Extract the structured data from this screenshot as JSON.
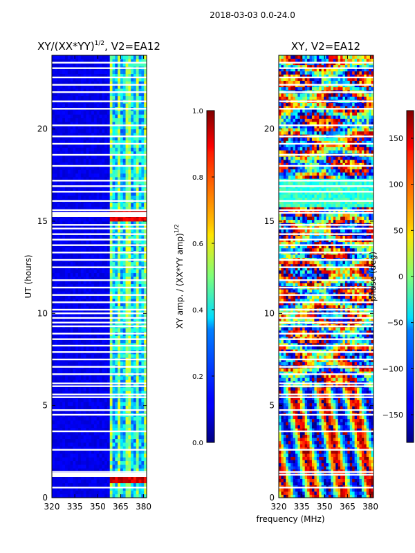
{
  "figure": {
    "suptitle": "2018-03-03 0.0-24.0",
    "shared_xlabel": "frequency (MHz)"
  },
  "chart_data": [
    {
      "type": "heatmap",
      "title": "XY/(XX*YY)^1/2, V2=EA12",
      "title_main": "XY/(XX*YY)",
      "title_exp": "1/2",
      "title_tail": ", V2=EA12",
      "x_range": [
        320,
        382
      ],
      "y_range": [
        0,
        24
      ],
      "x_ticks": [
        320,
        335,
        350,
        365,
        380
      ],
      "y_ticks": [
        0,
        5,
        10,
        15,
        20
      ],
      "ylabel": "UT (hours)",
      "colorbar": {
        "label_main": "XY amp. / (XX*YY amp)",
        "label_exp": "1/2",
        "range": [
          0.0,
          1.0
        ],
        "ticks": [
          "0.0",
          "0.2",
          "0.4",
          "0.6",
          "0.8",
          "1.0"
        ],
        "colormap": "jet"
      },
      "active_band_mhz": [
        358,
        382
      ],
      "bright_time_bands_ut": [
        1.0,
        15.3
      ],
      "flagged_rows_ut": [
        0.55,
        1.25,
        1.4,
        2.6,
        3.6,
        4.5,
        4.75,
        5.45,
        5.6,
        6.05,
        6.2,
        6.7,
        7.1,
        7.5,
        7.9,
        8.25,
        8.6,
        8.9,
        9.3,
        9.5,
        9.75,
        10.0,
        10.2,
        10.6,
        11.0,
        11.4,
        11.8,
        12.5,
        12.9,
        13.3,
        13.7,
        14.0,
        14.3,
        14.6,
        14.8,
        15.45,
        15.6,
        16.1,
        16.6,
        16.9,
        17.2,
        18.0,
        18.6,
        19.2,
        19.6,
        20.2,
        21.1,
        21.5,
        22.0,
        22.4,
        22.8,
        23.3,
        23.6
      ]
    },
    {
      "type": "heatmap",
      "title": "XY, V2=EA12",
      "x_range": [
        320,
        382
      ],
      "y_range": [
        0,
        24
      ],
      "x_ticks": [
        320,
        335,
        350,
        365,
        380
      ],
      "y_ticks": [
        0,
        5,
        10,
        15,
        20
      ],
      "xlabel": "frequency (MHz)",
      "colorbar": {
        "label": "phase (deg)",
        "range": [
          -180,
          180
        ],
        "ticks": [
          "−150",
          "−100",
          "−50",
          "0",
          "50",
          "100",
          "150"
        ],
        "tick_values": [
          -150,
          -100,
          -50,
          0,
          50,
          100,
          150
        ],
        "colormap": "jet"
      },
      "flagged_rows_ut": [
        0.55,
        1.25,
        1.4,
        2.6,
        3.6,
        4.5,
        4.75,
        5.45,
        5.6,
        6.05,
        6.2,
        6.7,
        7.1,
        7.5,
        7.9,
        8.25,
        8.6,
        8.9,
        9.3,
        9.5,
        9.75,
        10.0,
        10.2,
        10.6,
        11.0,
        11.4,
        11.8,
        12.5,
        12.9,
        13.3,
        13.7,
        14.0,
        14.3,
        14.6,
        14.8,
        15.45,
        15.6,
        16.1,
        16.6,
        16.9,
        17.2,
        18.0,
        18.6,
        19.2,
        19.6,
        20.2,
        21.1,
        21.5,
        22.0,
        22.4,
        22.8,
        23.3,
        23.6
      ]
    }
  ]
}
